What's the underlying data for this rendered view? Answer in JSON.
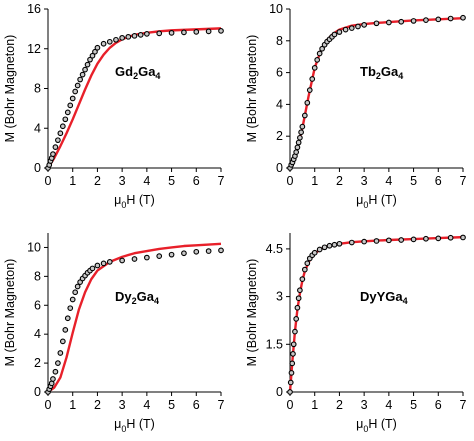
{
  "colors": {
    "fit": "#e8202a",
    "marker": "#000000",
    "marker_fill": "#c8c8c8",
    "axis": "#000000"
  },
  "chart_data": [
    {
      "type": "scatter",
      "compound": {
        "prefix": "Gd",
        "sub1": "2",
        "mid": "Ga",
        "sub2": "4"
      },
      "xlabel": {
        "pre": "",
        "mu": "μ",
        "sub": "0",
        "post": "H (T)"
      },
      "ylabel": "M (Bohr Magneton)",
      "xlim": [
        0,
        7
      ],
      "ylim": [
        0,
        16
      ],
      "xticks": [
        0,
        1,
        2,
        3,
        4,
        5,
        6,
        7
      ],
      "yticks": [
        0,
        4,
        8,
        12,
        16
      ],
      "series": [
        {
          "kind": "markers",
          "x": [
            0,
            0.05,
            0.1,
            0.15,
            0.2,
            0.3,
            0.4,
            0.5,
            0.6,
            0.7,
            0.8,
            0.9,
            1.0,
            1.1,
            1.2,
            1.3,
            1.4,
            1.5,
            1.6,
            1.7,
            1.8,
            1.9,
            2.0,
            2.25,
            2.5,
            2.75,
            3.0,
            3.25,
            3.5,
            3.75,
            4.0,
            4.5,
            5.0,
            5.5,
            6.0,
            6.5,
            7.0
          ],
          "y": [
            0,
            0.3,
            0.7,
            1.0,
            1.4,
            2.1,
            2.8,
            3.5,
            4.2,
            4.9,
            5.6,
            6.3,
            7.0,
            7.7,
            8.3,
            8.9,
            9.4,
            9.9,
            10.4,
            10.9,
            11.3,
            11.7,
            12.1,
            12.5,
            12.7,
            12.9,
            13.1,
            13.2,
            13.3,
            13.4,
            13.5,
            13.55,
            13.6,
            13.65,
            13.7,
            13.75,
            13.8
          ]
        },
        {
          "kind": "fit",
          "x": [
            0,
            0.25,
            0.5,
            0.75,
            1.0,
            1.25,
            1.5,
            1.75,
            2.0,
            2.25,
            2.5,
            2.75,
            3.0,
            3.25,
            3.5,
            4.0,
            4.5,
            5.0,
            5.5,
            6.0,
            6.5,
            7.0
          ],
          "y": [
            0,
            1.0,
            2.2,
            3.5,
            4.9,
            6.4,
            7.9,
            9.3,
            10.5,
            11.4,
            12.1,
            12.6,
            12.95,
            13.2,
            13.4,
            13.6,
            13.75,
            13.85,
            13.9,
            13.95,
            14.0,
            14.05
          ]
        }
      ]
    },
    {
      "type": "scatter",
      "compound": {
        "prefix": "Tb",
        "sub1": "2",
        "mid": "Ga",
        "sub2": "4"
      },
      "xlabel": {
        "pre": "",
        "mu": "μ",
        "sub": "0",
        "post": "H (T)"
      },
      "ylabel": "M (Bohr Magneton)",
      "xlim": [
        0,
        7
      ],
      "ylim": [
        0,
        10
      ],
      "xticks": [
        0,
        1,
        2,
        3,
        4,
        5,
        6,
        7
      ],
      "yticks": [
        0,
        2,
        4,
        6,
        8,
        10
      ],
      "series": [
        {
          "kind": "markers",
          "x": [
            0,
            0.05,
            0.1,
            0.15,
            0.2,
            0.25,
            0.3,
            0.35,
            0.4,
            0.45,
            0.5,
            0.6,
            0.7,
            0.8,
            0.9,
            1.0,
            1.1,
            1.2,
            1.3,
            1.4,
            1.5,
            1.6,
            1.7,
            1.8,
            2.0,
            2.25,
            2.5,
            2.75,
            3.0,
            3.5,
            4.0,
            4.5,
            5.0,
            5.5,
            6.0,
            6.5,
            7.0
          ],
          "y": [
            0,
            0.2,
            0.35,
            0.55,
            0.75,
            1.0,
            1.3,
            1.6,
            1.9,
            2.25,
            2.6,
            3.3,
            4.1,
            4.9,
            5.6,
            6.3,
            6.8,
            7.2,
            7.5,
            7.75,
            7.95,
            8.1,
            8.25,
            8.4,
            8.55,
            8.7,
            8.8,
            8.9,
            9.0,
            9.1,
            9.15,
            9.2,
            9.25,
            9.3,
            9.35,
            9.4,
            9.45
          ]
        },
        {
          "kind": "fit",
          "x": [
            0,
            0.25,
            0.5,
            0.75,
            1.0,
            1.25,
            1.5,
            1.75,
            2.0,
            2.5,
            3.0,
            3.5,
            4.0,
            5.0,
            6.0,
            7.0
          ],
          "y": [
            0,
            1.0,
            2.5,
            4.5,
            6.3,
            7.4,
            8.05,
            8.45,
            8.7,
            8.95,
            9.05,
            9.12,
            9.18,
            9.28,
            9.35,
            9.42
          ]
        }
      ]
    },
    {
      "type": "scatter",
      "compound": {
        "prefix": "Dy",
        "sub1": "2",
        "mid": "Ga",
        "sub2": "4"
      },
      "xlabel": {
        "pre": "",
        "mu": "μ",
        "sub": "0",
        "post": "H (T)"
      },
      "ylabel": "M (Bohr Magneton)",
      "xlim": [
        0,
        7
      ],
      "ylim": [
        0,
        11
      ],
      "xticks": [
        0,
        1,
        2,
        3,
        4,
        5,
        6,
        7
      ],
      "yticks": [
        0,
        2,
        4,
        6,
        8,
        10
      ],
      "series": [
        {
          "kind": "markers",
          "x": [
            0,
            0.05,
            0.1,
            0.15,
            0.2,
            0.3,
            0.4,
            0.5,
            0.6,
            0.7,
            0.8,
            0.9,
            1.0,
            1.1,
            1.2,
            1.3,
            1.4,
            1.5,
            1.6,
            1.7,
            1.8,
            2.0,
            2.25,
            2.5,
            3.0,
            3.5,
            4.0,
            4.5,
            5.0,
            5.5,
            6.0,
            6.5,
            7.0
          ],
          "y": [
            0,
            0.2,
            0.4,
            0.6,
            0.9,
            1.4,
            2.0,
            2.7,
            3.5,
            4.3,
            5.1,
            5.8,
            6.4,
            6.9,
            7.3,
            7.6,
            7.85,
            8.05,
            8.25,
            8.4,
            8.55,
            8.75,
            8.9,
            9.0,
            9.1,
            9.2,
            9.3,
            9.4,
            9.5,
            9.6,
            9.7,
            9.75,
            9.8
          ]
        },
        {
          "kind": "fit",
          "x": [
            0,
            0.25,
            0.5,
            0.75,
            1.0,
            1.25,
            1.5,
            1.75,
            2.0,
            2.5,
            3.0,
            3.5,
            4.0,
            4.5,
            5.0,
            5.5,
            6.0,
            6.5,
            7.0
          ],
          "y": [
            0,
            0.3,
            1.0,
            2.4,
            4.1,
            5.7,
            6.9,
            7.8,
            8.4,
            9.0,
            9.35,
            9.6,
            9.75,
            9.9,
            10.0,
            10.1,
            10.15,
            10.2,
            10.25
          ]
        }
      ]
    },
    {
      "type": "scatter",
      "compound": {
        "prefix": "DyYGa",
        "sub1": "",
        "mid": "",
        "sub2": "4"
      },
      "xlabel": {
        "pre": "",
        "mu": "μ",
        "sub": "0",
        "post": "H (T)"
      },
      "ylabel": "M (Bohr Magneton)",
      "xlim": [
        0,
        7
      ],
      "ylim": [
        0,
        5.0
      ],
      "xticks": [
        0,
        1,
        2,
        3,
        4,
        5,
        6,
        7
      ],
      "yticks": [
        0,
        1.5,
        3,
        4.5
      ],
      "ytick_labels": [
        "0",
        "1.5",
        "3",
        "4.5"
      ],
      "series": [
        {
          "kind": "markers",
          "x": [
            0,
            0.03,
            0.06,
            0.09,
            0.12,
            0.15,
            0.2,
            0.25,
            0.3,
            0.35,
            0.4,
            0.5,
            0.6,
            0.7,
            0.8,
            0.9,
            1.0,
            1.2,
            1.4,
            1.6,
            1.8,
            2.0,
            2.5,
            3.0,
            3.5,
            4.0,
            4.5,
            5.0,
            5.5,
            6.0,
            6.5,
            7.0
          ],
          "y": [
            0,
            0.3,
            0.6,
            0.9,
            1.2,
            1.5,
            1.9,
            2.3,
            2.65,
            2.95,
            3.2,
            3.55,
            3.85,
            4.05,
            4.2,
            4.3,
            4.38,
            4.48,
            4.55,
            4.6,
            4.63,
            4.66,
            4.7,
            4.73,
            4.75,
            4.77,
            4.78,
            4.8,
            4.82,
            4.83,
            4.85,
            4.86
          ]
        },
        {
          "kind": "fit",
          "x": [
            0,
            0.1,
            0.2,
            0.3,
            0.4,
            0.5,
            0.6,
            0.8,
            1.0,
            1.25,
            1.5,
            2.0,
            2.5,
            3.0,
            4.0,
            5.0,
            6.0,
            7.0
          ],
          "y": [
            0,
            1.0,
            1.9,
            2.6,
            3.1,
            3.5,
            3.8,
            4.15,
            4.35,
            4.5,
            4.58,
            4.66,
            4.71,
            4.74,
            4.78,
            4.81,
            4.84,
            4.87
          ]
        }
      ]
    }
  ]
}
